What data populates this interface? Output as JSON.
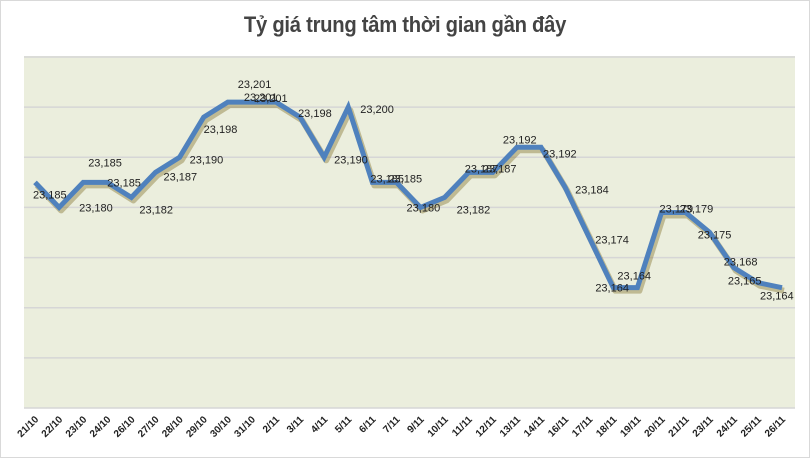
{
  "chart_data": {
    "type": "line",
    "title": "Tỷ giá trung tâm thời gian gần đây",
    "xlabel": "",
    "ylabel": "",
    "ylim": [
      23140,
      23210
    ],
    "y_gridlines": [
      23140,
      23150,
      23160,
      23170,
      23180,
      23190,
      23200,
      23210
    ],
    "y_tick_labels_visible": false,
    "grid": true,
    "legend": null,
    "colors": {
      "line": "#4f81bd",
      "plot_bg": "#ebeedd",
      "grid": "#d6d6d6",
      "shadow": "#8a7a3a"
    },
    "categories": [
      "21/10",
      "22/10",
      "23/10",
      "24/10",
      "26/10",
      "27/10",
      "28/10",
      "29/10",
      "30/10",
      "31/10",
      "2/11",
      "3/11",
      "4/11",
      "5/11",
      "6/11",
      "7/11",
      "9/11",
      "10/11",
      "11/11",
      "12/11",
      "13/11",
      "14/11",
      "16/11",
      "17/11",
      "18/11",
      "19/11",
      "20/11",
      "21/11",
      "23/11",
      "24/11",
      "25/11",
      "26/11"
    ],
    "series": [
      {
        "name": "Tỷ giá trung tâm",
        "values": [
          23185,
          23180,
          23185,
          23185,
          23182,
          23187,
          23190,
          23198,
          23201,
          23201,
          23201,
          23198,
          23190,
          23200,
          23185,
          23185,
          23180,
          23182,
          23187,
          23187,
          23192,
          23192,
          23184,
          23174,
          23164,
          23164,
          23179,
          23179,
          23175,
          23168,
          23165,
          23164
        ]
      }
    ],
    "data_labels": [
      "23,185",
      "23,180",
      "23,185",
      "23,185",
      "23,182",
      "23,187",
      "23,190",
      "23,198",
      "23,201",
      "23,201",
      "23,201",
      "23,198",
      "23,190",
      "23,200",
      "23,185",
      "23,185",
      "23,180",
      "23,182",
      "23,187",
      "23,187",
      "23,192",
      "23,192",
      "23,184",
      "23,174",
      "23,164",
      "23,164",
      "23,179",
      "23,179",
      "23,175",
      "23,168",
      "23,165",
      "23,164"
    ]
  }
}
